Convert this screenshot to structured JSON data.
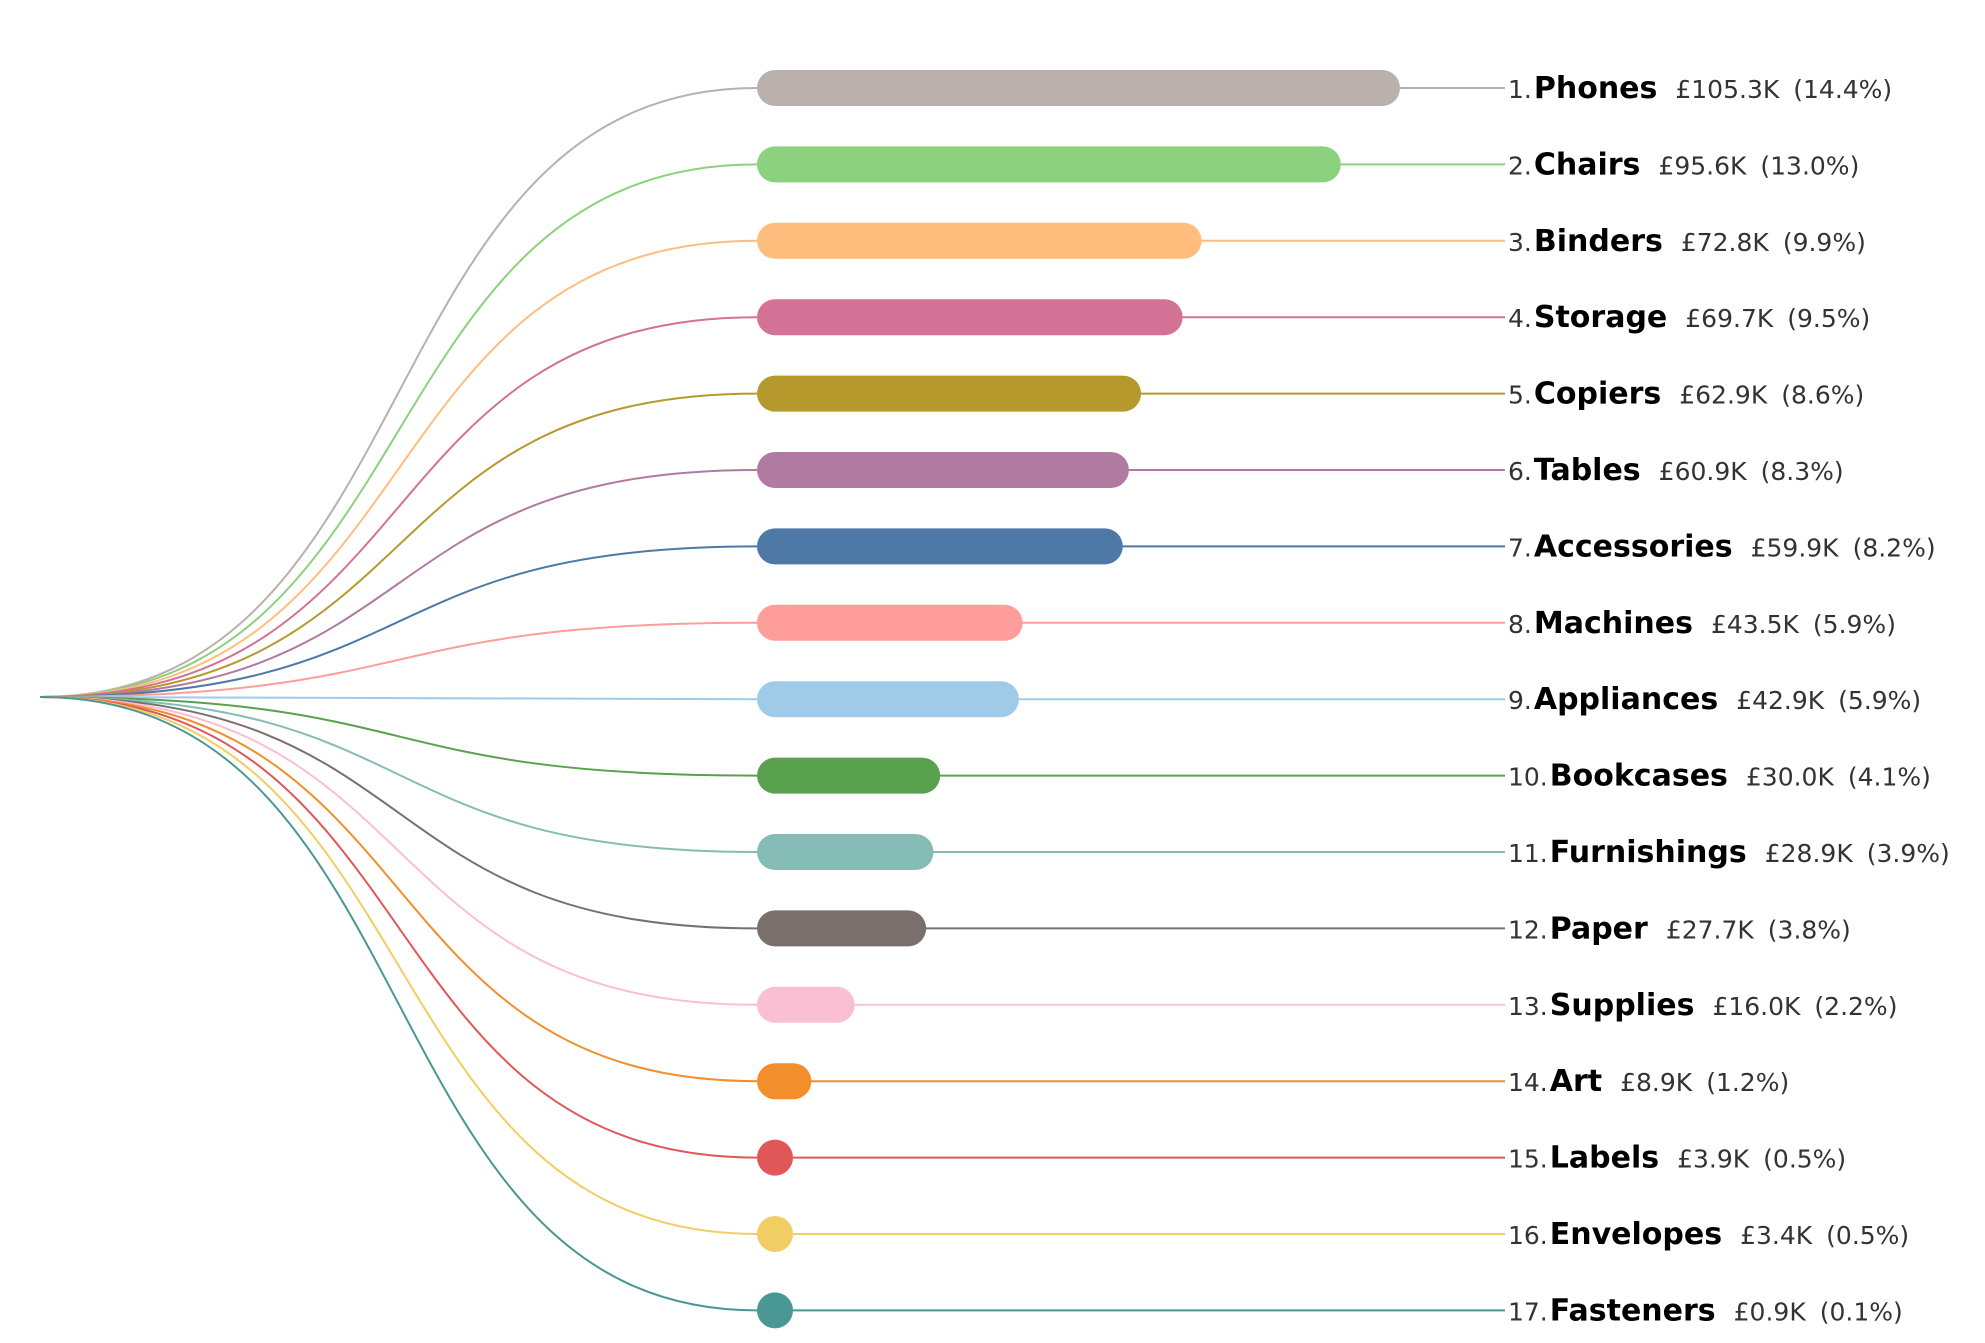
{
  "chart_data": {
    "type": "bar",
    "title": "",
    "xlabel": "",
    "ylabel": "",
    "grid": false,
    "legend": "none",
    "categories": [
      "Phones",
      "Chairs",
      "Binders",
      "Storage",
      "Copiers",
      "Tables",
      "Accessories",
      "Machines",
      "Appliances",
      "Bookcases",
      "Furnishings",
      "Paper",
      "Supplies",
      "Art",
      "Labels",
      "Envelopes",
      "Fasteners"
    ],
    "ranks": [
      "1.",
      "2.",
      "3.",
      "4.",
      "5.",
      "6.",
      "7.",
      "8.",
      "9.",
      "10.",
      "11.",
      "12.",
      "13.",
      "14.",
      "15.",
      "16.",
      "17."
    ],
    "values": [
      105.3,
      95.6,
      72.8,
      69.7,
      62.9,
      60.9,
      59.9,
      43.5,
      42.9,
      30.0,
      28.9,
      27.7,
      16.0,
      8.9,
      3.9,
      3.4,
      0.9
    ],
    "value_labels": [
      "£105.3K",
      "£95.6K",
      "£72.8K",
      "£69.7K",
      "£62.9K",
      "£60.9K",
      "£59.9K",
      "£43.5K",
      "£42.9K",
      "£30.0K",
      "£28.9K",
      "£27.7K",
      "£16.0K",
      "£8.9K",
      "£3.9K",
      "£3.4K",
      "£0.9K"
    ],
    "percent_labels": [
      "(14.4%)",
      "(13.0%)",
      "(9.9%)",
      "(9.5%)",
      "(8.6%)",
      "(8.3%)",
      "(8.2%)",
      "(5.9%)",
      "(5.9%)",
      "(4.1%)",
      "(3.9%)",
      "(3.8%)",
      "(2.2%)",
      "(1.2%)",
      "(0.5%)",
      "(0.5%)",
      "(0.1%)"
    ],
    "percents": [
      14.4,
      13.0,
      9.9,
      9.5,
      8.6,
      8.3,
      8.2,
      5.9,
      5.9,
      4.1,
      3.9,
      3.8,
      2.2,
      1.2,
      0.5,
      0.5,
      0.1
    ],
    "colors": [
      "#bab0ac",
      "#8cd17d",
      "#ffbe7d",
      "#d37295",
      "#b6992d",
      "#b07aa1",
      "#4e79a7",
      "#ff9d9a",
      "#a0cbe8",
      "#59a14f",
      "#86bcb6",
      "#79706e",
      "#fabfd2",
      "#f28e2b",
      "#e15759",
      "#f1ce63",
      "#499894"
    ]
  }
}
